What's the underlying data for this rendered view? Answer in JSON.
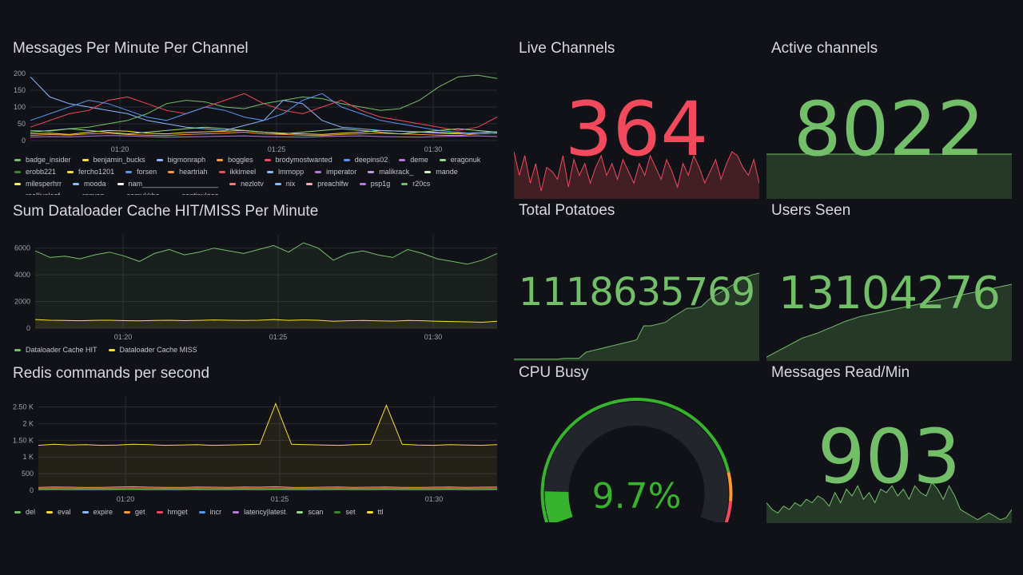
{
  "colors": {
    "bg": "#111217",
    "green": "#73bf69",
    "red": "#f2495c",
    "yellow": "#fade2a",
    "orange": "#ff9830",
    "blue": "#5794f2",
    "gauge_green": "#37b32d"
  },
  "panels": {
    "messages": {
      "title": "Messages Per Minute Per Channel",
      "chart_data": {
        "type": "line",
        "y_ticks": [
          "200",
          "150",
          "100",
          "50",
          "0"
        ],
        "ylim": [
          0,
          200
        ],
        "x_ticks": [
          "01:20",
          "01:25",
          "01:30"
        ],
        "series": [
          {
            "name": "badge_insider",
            "color": "#73bf69",
            "values": [
              30,
              28,
              35,
              40,
              50,
              60,
              80,
              110,
              120,
              115,
              100,
              95,
              110,
              120,
              130,
              125,
              110,
              100,
              90,
              95,
              120,
              160,
              190,
              195,
              185
            ]
          },
          {
            "name": "benjamin_bucks",
            "color": "#fade2a",
            "values": [
              20,
              22,
              18,
              25,
              30,
              28,
              22,
              20,
              24,
              26,
              28,
              30,
              25,
              22,
              20,
              18,
              22,
              25,
              30,
              28,
              26,
              24,
              22,
              20,
              22
            ]
          },
          {
            "name": "bigmonraph",
            "color": "#8ab8ff",
            "values": [
              190,
              130,
              110,
              100,
              90,
              80,
              60,
              50,
              40,
              35,
              30,
              45,
              60,
              120,
              110,
              60,
              40,
              35,
              30,
              28,
              25,
              22,
              20,
              24,
              26
            ]
          },
          {
            "name": "boggles",
            "color": "#ff9830",
            "values": [
              15,
              18,
              16,
              20,
              22,
              18,
              16,
              15,
              18,
              20,
              22,
              25,
              20,
              18,
              16,
              15,
              18,
              20,
              22,
              20,
              18,
              16,
              15,
              20,
              22
            ]
          },
          {
            "name": "brodymostwanted",
            "color": "#f2495c",
            "values": [
              40,
              60,
              80,
              90,
              120,
              130,
              110,
              90,
              80,
              100,
              120,
              140,
              110,
              90,
              80,
              100,
              120,
              90,
              70,
              60,
              50,
              40,
              30,
              40,
              70
            ]
          },
          {
            "name": "deepins02",
            "color": "#5794f2",
            "values": [
              60,
              80,
              100,
              120,
              110,
              90,
              70,
              60,
              80,
              100,
              90,
              70,
              60,
              80,
              120,
              140,
              100,
              80,
              60,
              50,
              40,
              30,
              25,
              20,
              22
            ]
          },
          {
            "name": "deme",
            "color": "#b877d9",
            "values": [
              10,
              12,
              11,
              13,
              15,
              14,
              12,
              10,
              11,
              12,
              13,
              14,
              12,
              11,
              10,
              12,
              13,
              14,
              12,
              11,
              10,
              12,
              13,
              14,
              12
            ]
          },
          {
            "name": "eragonuk",
            "color": "#96d98d",
            "values": [
              25,
              30,
              35,
              30,
              25,
              20,
              25,
              30,
              35,
              40,
              35,
              30,
              25,
              20,
              25,
              30,
              35,
              30,
              25,
              20,
              25,
              30,
              35,
              30,
              25
            ]
          }
        ]
      },
      "legend": [
        "badge_insider",
        "benjamin_bucks",
        "bigmonraph",
        "boggles",
        "brodymostwanted",
        "deepins02",
        "deme",
        "eragonuk",
        "erobb221",
        "fercho1201",
        "forsen",
        "heartriah",
        "ikkimeel",
        "lmmopp",
        "imperator",
        "malikrack_",
        "mande",
        "milesperhrr",
        "mooda",
        "nam___________________",
        "nezlotv",
        "nix",
        "preachlfw",
        "psp1g",
        "r20cs",
        "realliveleaf",
        "renyan",
        "samukkha",
        "santipulgaz"
      ],
      "legend_colors": [
        "#73bf69",
        "#fade2a",
        "#8ab8ff",
        "#ff9830",
        "#f2495c",
        "#5794f2",
        "#b877d9",
        "#96d98d",
        "#37872d",
        "#fade2a",
        "#5794f2",
        "#ff9830",
        "#f2495c",
        "#8ab8ff",
        "#b877d9",
        "#ca95e5",
        "#c8f2c2",
        "#ffee52",
        "#8ab8ff",
        "#ffffff",
        "#ff7383",
        "#8ab8ff",
        "#ffa6b0",
        "#b877d9",
        "#73bf69",
        "#fade2a",
        "#8ab8ff",
        "#ff9830",
        "#f2495c"
      ]
    },
    "dataloader": {
      "title": "Sum Dataloader Cache HIT/MISS Per Minute",
      "chart_data": {
        "type": "area",
        "y_ticks": [
          "6000",
          "4000",
          "2000",
          "0"
        ],
        "ylim": [
          0,
          7000
        ],
        "x_ticks": [
          "01:20",
          "01:25",
          "01:30"
        ],
        "series": [
          {
            "name": "Dataloader Cache HIT",
            "color": "#73bf69",
            "values": [
              5800,
              5300,
              5400,
              5200,
              5500,
              5700,
              5400,
              5000,
              5600,
              5900,
              5500,
              5700,
              6000,
              5800,
              5600,
              5900,
              6200,
              5700,
              6400,
              6000,
              5100,
              5600,
              5800,
              5500,
              5300,
              5900,
              5600,
              5200,
              5000,
              4800,
              5100,
              5600
            ]
          },
          {
            "name": "Dataloader Cache MISS",
            "color": "#fade2a",
            "values": [
              650,
              600,
              580,
              560,
              590,
              600,
              570,
              550,
              580,
              600,
              570,
              590,
              620,
              600,
              580,
              600,
              650,
              590,
              620,
              600,
              520,
              560,
              580,
              550,
              530,
              580,
              560,
              520,
              500,
              480,
              450,
              520
            ]
          }
        ]
      }
    },
    "redis": {
      "title": "Redis commands per second",
      "chart_data": {
        "type": "line",
        "y_ticks": [
          "2.50 K",
          "2 K",
          "1.50 K",
          "1 K",
          "500",
          "0"
        ],
        "ylim": [
          0,
          2800
        ],
        "x_ticks": [
          "01:20",
          "01:25",
          "01:30"
        ],
        "series": [
          {
            "name": "eval",
            "color": "#fade2a",
            "values": [
              1350,
              1380,
              1360,
              1370,
              1350,
              1360,
              1380,
              1370,
              1350,
              1360,
              1370,
              1350,
              1360,
              1370,
              1380,
              2600,
              1380,
              1370,
              1360,
              1350,
              1370,
              1380,
              2550,
              1380,
              1360,
              1350,
              1370,
              1360,
              1350,
              1370
            ]
          },
          {
            "name": "get",
            "color": "#ff9830",
            "values": [
              90,
              100,
              95,
              85,
              90,
              100,
              110,
              95,
              90,
              85,
              100,
              95,
              90,
              100,
              95,
              110,
              90,
              85,
              95,
              100,
              90,
              95,
              100,
              90,
              85,
              95,
              100,
              90,
              95,
              100
            ]
          },
          {
            "name": "hmget",
            "color": "#f2495c",
            "values": [
              60,
              70,
              65,
              55,
              60,
              70,
              75,
              65,
              60,
              55,
              70,
              65,
              60,
              70,
              65,
              75,
              60,
              55,
              65,
              70,
              60,
              65,
              70,
              60,
              55,
              65,
              70,
              60,
              65,
              70
            ]
          },
          {
            "name": "del",
            "color": "#73bf69",
            "values": [
              30,
              35,
              32,
              28,
              30,
              35,
              38,
              32,
              30,
              28,
              35,
              32,
              30,
              35,
              32,
              38,
              30,
              28,
              32,
              35,
              30,
              32,
              35,
              30,
              28,
              32,
              35,
              30,
              32,
              35
            ]
          }
        ]
      },
      "legend": [
        "del",
        "eval",
        "expire",
        "get",
        "hmget",
        "incr",
        "latency|latest",
        "scan",
        "set",
        "ttl"
      ],
      "legend_colors": [
        "#73bf69",
        "#fade2a",
        "#8ab8ff",
        "#ff9830",
        "#f2495c",
        "#5794f2",
        "#b877d9",
        "#96d98d",
        "#37872d",
        "#fade2a"
      ]
    },
    "live_channels": {
      "title": "Live Channels",
      "value": "364",
      "color": "#f2495c",
      "spark": [
        60,
        30,
        55,
        20,
        45,
        10,
        40,
        35,
        25,
        55,
        15,
        50,
        30,
        45,
        20,
        40,
        55,
        30,
        45,
        25,
        50,
        35,
        20,
        45,
        30,
        55,
        40,
        25,
        50,
        35,
        15,
        45,
        30,
        55,
        40,
        20,
        35,
        50,
        25,
        45,
        60,
        55,
        40,
        30,
        50,
        20
      ]
    },
    "active_channels": {
      "title": "Active channels",
      "value": "8022",
      "color": "#73bf69",
      "spark": [
        50,
        50,
        50,
        50,
        50,
        50,
        50,
        50,
        50,
        50,
        50,
        50,
        50,
        50,
        50,
        50,
        50,
        50,
        50,
        50
      ]
    },
    "total_potatoes": {
      "title": "Total Potatoes",
      "value": "1118635769",
      "color": "#73bf69",
      "spark": [
        2,
        2,
        2,
        2,
        2,
        2,
        2,
        3,
        3,
        3,
        10,
        12,
        14,
        16,
        18,
        20,
        22,
        24,
        40,
        40,
        42,
        44,
        50,
        55,
        60,
        60,
        62,
        70,
        75,
        80,
        85,
        90,
        95,
        98,
        100
      ]
    },
    "users_seen": {
      "title": "Users Seen",
      "value": "13104276",
      "color": "#73bf69",
      "spark": [
        5,
        10,
        15,
        20,
        25,
        30,
        33,
        36,
        40,
        44,
        48,
        52,
        55,
        58,
        60,
        62,
        64,
        66,
        68,
        70,
        72,
        74,
        76,
        78,
        80,
        82,
        84,
        86,
        88,
        90,
        92,
        94,
        96,
        98,
        100
      ]
    },
    "cpu_busy": {
      "title": "CPU Busy",
      "value": "9.7%",
      "percent": 9.7,
      "color": "#37b32d"
    },
    "messages_read": {
      "title": "Messages Read/Min",
      "value": "903",
      "color": "#73bf69",
      "spark": [
        30,
        20,
        15,
        25,
        20,
        30,
        25,
        35,
        30,
        40,
        35,
        25,
        45,
        30,
        50,
        40,
        55,
        35,
        45,
        30,
        50,
        45,
        55,
        40,
        50,
        35,
        55,
        45,
        40,
        60,
        50,
        35,
        55,
        40,
        20,
        15,
        10,
        5,
        10,
        15,
        10,
        5,
        8,
        20
      ]
    }
  }
}
